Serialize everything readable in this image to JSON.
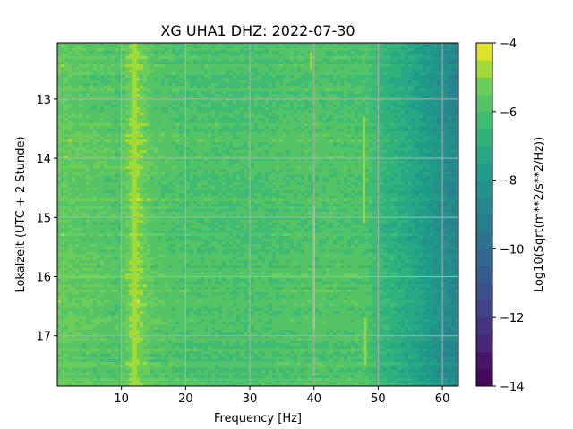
{
  "chart_data": {
    "type": "heatmap",
    "title": "XG UHA1  DHZ: 2022-07-30",
    "xlabel": "Frequency [Hz]",
    "ylabel": "Lokalzeit (UTC + 2 Stunde)",
    "xlim": [
      0,
      62.5
    ],
    "ylim": [
      17.85,
      12.05
    ],
    "x_ticks": [
      10,
      20,
      30,
      40,
      50,
      60
    ],
    "y_ticks": [
      13,
      14,
      15,
      16,
      17
    ],
    "grid": true,
    "colormap": "viridis",
    "colorbar": {
      "label": "Log10(Sqrt(m**2/s**2/Hz))",
      "range": [
        -14,
        -4
      ],
      "ticks": [
        -4,
        -6,
        -8,
        -10,
        -12,
        -14
      ],
      "levels": 20
    },
    "spectrum_profile": [
      {
        "freq": 0,
        "value": -5.4
      },
      {
        "freq": 5,
        "value": -5.6
      },
      {
        "freq": 10,
        "value": -5.8
      },
      {
        "freq": 12,
        "value": -4.8
      },
      {
        "freq": 15,
        "value": -5.7
      },
      {
        "freq": 20,
        "value": -5.9
      },
      {
        "freq": 30,
        "value": -6.0
      },
      {
        "freq": 40,
        "value": -5.8
      },
      {
        "freq": 48,
        "value": -5.9
      },
      {
        "freq": 51,
        "value": -6.6
      },
      {
        "freq": 55,
        "value": -7.2
      },
      {
        "freq": 58,
        "value": -7.8
      },
      {
        "freq": 60,
        "value": -8.3
      },
      {
        "freq": 62.5,
        "value": -8.8
      }
    ],
    "features": [
      {
        "type": "constant_line",
        "freq": 12,
        "value": -4.6
      },
      {
        "type": "transient",
        "freq": 40,
        "time_range": [
          14.8,
          16.9
        ],
        "value": -4.8
      },
      {
        "type": "transient",
        "freq": 47.8,
        "time_range": [
          13.3,
          15.1
        ],
        "value": -4.6
      },
      {
        "type": "transient",
        "freq": 48,
        "time_range": [
          16.7,
          17.5
        ],
        "value": -4.6
      },
      {
        "type": "transient",
        "freq": 39.5,
        "time_range": [
          12.2,
          12.5
        ],
        "value": -5.0
      }
    ]
  },
  "colors": {
    "axis": "#000000",
    "grid": "#b0b0b0",
    "background": "#ffffff"
  }
}
